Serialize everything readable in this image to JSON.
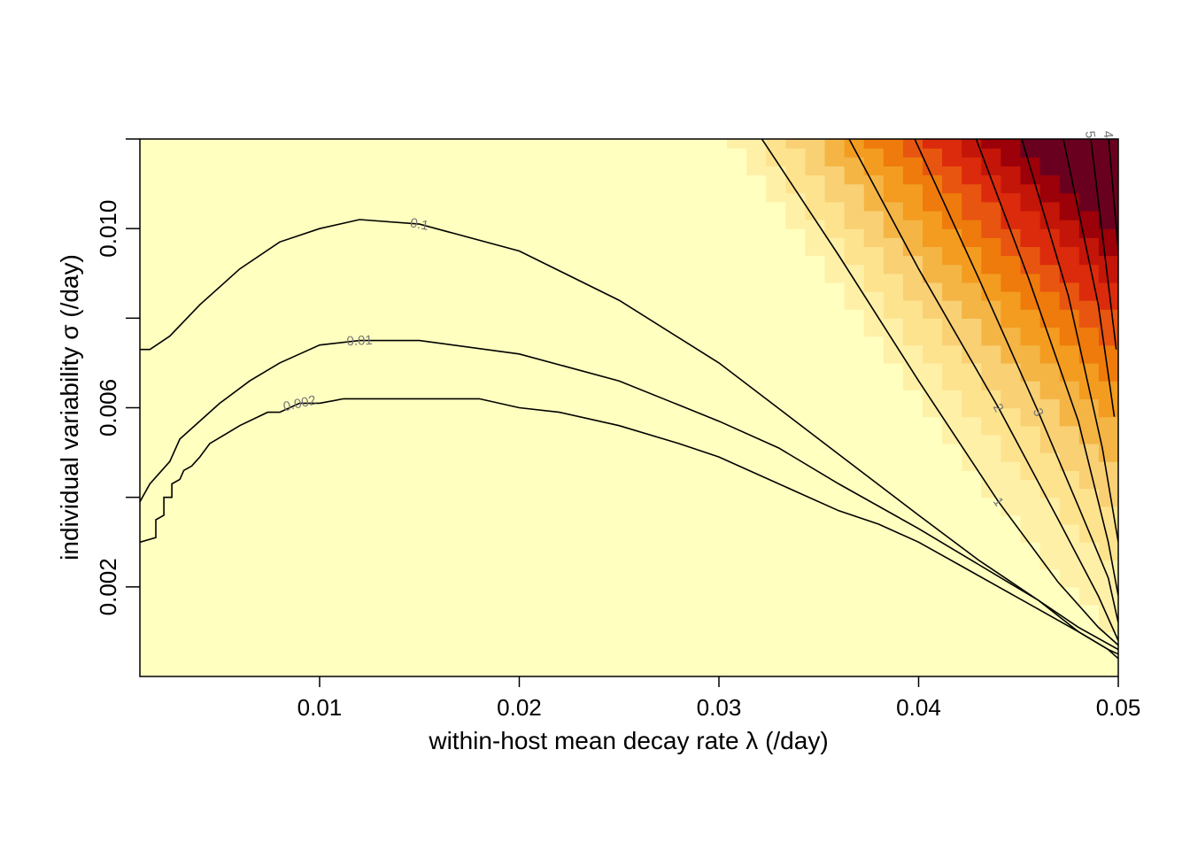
{
  "chart_data": {
    "type": "heatmap",
    "title": "",
    "xlabel": "within-host mean decay rate λ (/day)",
    "ylabel": "individual variability σ (/day)",
    "xlim": [
      0.001,
      0.05
    ],
    "ylim": [
      0.0,
      0.012
    ],
    "x_ticks": [
      {
        "value": 0.01,
        "label": "0.01"
      },
      {
        "value": 0.02,
        "label": "0.02"
      },
      {
        "value": 0.03,
        "label": "0.03"
      },
      {
        "value": 0.04,
        "label": "0.04"
      },
      {
        "value": 0.05,
        "label": "0.05"
      }
    ],
    "y_ticks": [
      {
        "value": 0.002,
        "label": "0.002"
      },
      {
        "value": 0.004,
        "label": ""
      },
      {
        "value": 0.006,
        "label": "0.006"
      },
      {
        "value": 0.008,
        "label": ""
      },
      {
        "value": 0.01,
        "label": "0.010"
      },
      {
        "value": 0.012,
        "label": ""
      }
    ],
    "color_levels": [
      "#FFFFBF",
      "#FFF0A8",
      "#FEE38F",
      "#F9D074",
      "#F4B545",
      "#F39C20",
      "#EE7B0C",
      "#E85510",
      "#DB2B0C",
      "#C41509",
      "#9C0008",
      "#6A0020"
    ],
    "contours": [
      {
        "label": "0.002",
        "points": [
          [
            0.001,
            0.003
          ],
          [
            0.0018,
            0.0031
          ],
          [
            0.0018,
            0.0035
          ],
          [
            0.0022,
            0.0036
          ],
          [
            0.0022,
            0.004
          ],
          [
            0.0026,
            0.004
          ],
          [
            0.0026,
            0.0043
          ],
          [
            0.003,
            0.0044
          ],
          [
            0.0032,
            0.0046
          ],
          [
            0.0036,
            0.0047
          ],
          [
            0.0038,
            0.0048
          ],
          [
            0.004,
            0.0049
          ],
          [
            0.0045,
            0.0052
          ],
          [
            0.006,
            0.0056
          ],
          [
            0.0074,
            0.0059
          ],
          [
            0.008,
            0.0059
          ],
          [
            0.009,
            0.0061
          ],
          [
            0.01,
            0.0061
          ],
          [
            0.0112,
            0.0062
          ],
          [
            0.013,
            0.0062
          ],
          [
            0.018,
            0.0062
          ],
          [
            0.02,
            0.006
          ],
          [
            0.022,
            0.0059
          ],
          [
            0.025,
            0.0056
          ],
          [
            0.028,
            0.0052
          ],
          [
            0.03,
            0.0049
          ],
          [
            0.032,
            0.0045
          ],
          [
            0.034,
            0.0041
          ],
          [
            0.036,
            0.0037
          ],
          [
            0.038,
            0.0034
          ],
          [
            0.04,
            0.003
          ],
          [
            0.042,
            0.0025
          ],
          [
            0.044,
            0.002
          ],
          [
            0.046,
            0.0015
          ],
          [
            0.048,
            0.001
          ],
          [
            0.0495,
            0.0006
          ],
          [
            0.05,
            0.0004
          ]
        ]
      },
      {
        "label": "0.01",
        "points": [
          [
            0.001,
            0.0039
          ],
          [
            0.0015,
            0.0043
          ],
          [
            0.0025,
            0.0048
          ],
          [
            0.003,
            0.0053
          ],
          [
            0.005,
            0.0061
          ],
          [
            0.0065,
            0.0066
          ],
          [
            0.008,
            0.007
          ],
          [
            0.009,
            0.0072
          ],
          [
            0.01,
            0.0074
          ],
          [
            0.012,
            0.0075
          ],
          [
            0.015,
            0.0075
          ],
          [
            0.02,
            0.0072
          ],
          [
            0.025,
            0.0066
          ],
          [
            0.03,
            0.0057
          ],
          [
            0.033,
            0.0051
          ],
          [
            0.036,
            0.0043
          ],
          [
            0.04,
            0.0033
          ],
          [
            0.043,
            0.0025
          ],
          [
            0.046,
            0.0017
          ],
          [
            0.048,
            0.001
          ],
          [
            0.0495,
            0.0006
          ],
          [
            0.05,
            0.0005
          ]
        ]
      },
      {
        "label": "0.1",
        "points": [
          [
            0.001,
            0.0073
          ],
          [
            0.0015,
            0.0073
          ],
          [
            0.0025,
            0.0076
          ],
          [
            0.004,
            0.0083
          ],
          [
            0.006,
            0.0091
          ],
          [
            0.008,
            0.0097
          ],
          [
            0.01,
            0.01
          ],
          [
            0.012,
            0.0102
          ],
          [
            0.015,
            0.0101
          ],
          [
            0.02,
            0.0095
          ],
          [
            0.025,
            0.0084
          ],
          [
            0.03,
            0.007
          ],
          [
            0.035,
            0.0053
          ],
          [
            0.04,
            0.0036
          ],
          [
            0.043,
            0.0026
          ],
          [
            0.046,
            0.0017
          ],
          [
            0.048,
            0.0011
          ],
          [
            0.05,
            0.0006
          ]
        ]
      },
      {
        "label": "1",
        "points": [
          [
            0.032,
            0.0121
          ],
          [
            0.036,
            0.0094
          ],
          [
            0.04,
            0.0066
          ],
          [
            0.044,
            0.0039
          ],
          [
            0.047,
            0.0021
          ],
          [
            0.049,
            0.0011
          ],
          [
            0.05,
            0.0007
          ]
        ]
      },
      {
        "label": "2",
        "points": [
          [
            0.0364,
            0.0121
          ],
          [
            0.04,
            0.0091
          ],
          [
            0.044,
            0.006
          ],
          [
            0.047,
            0.0035
          ],
          [
            0.049,
            0.0018
          ],
          [
            0.05,
            0.0008
          ]
        ]
      },
      {
        "label": "3",
        "points": [
          [
            0.0397,
            0.0121
          ],
          [
            0.043,
            0.0089
          ],
          [
            0.046,
            0.0059
          ],
          [
            0.048,
            0.0038
          ],
          [
            0.0495,
            0.0022
          ],
          [
            0.05,
            0.0012
          ]
        ]
      },
      {
        "label": "",
        "points": [
          [
            0.0428,
            0.0121
          ],
          [
            0.0455,
            0.0089
          ],
          [
            0.048,
            0.0057
          ],
          [
            0.0495,
            0.003
          ],
          [
            0.05,
            0.0018
          ]
        ]
      },
      {
        "label": "",
        "points": [
          [
            0.0451,
            0.0121
          ],
          [
            0.0475,
            0.0085
          ],
          [
            0.0492,
            0.0051
          ],
          [
            0.05,
            0.003
          ]
        ]
      },
      {
        "label": "",
        "points": [
          [
            0.0472,
            0.0121
          ],
          [
            0.049,
            0.0083
          ],
          [
            0.0498,
            0.0058
          ]
        ]
      },
      {
        "label": "5",
        "points": [
          [
            0.0486,
            0.0121
          ],
          [
            0.0499,
            0.0073
          ]
        ]
      },
      {
        "label": "4",
        "points": [
          [
            0.0495,
            0.0121
          ],
          [
            0.05,
            0.0095
          ]
        ]
      }
    ]
  }
}
